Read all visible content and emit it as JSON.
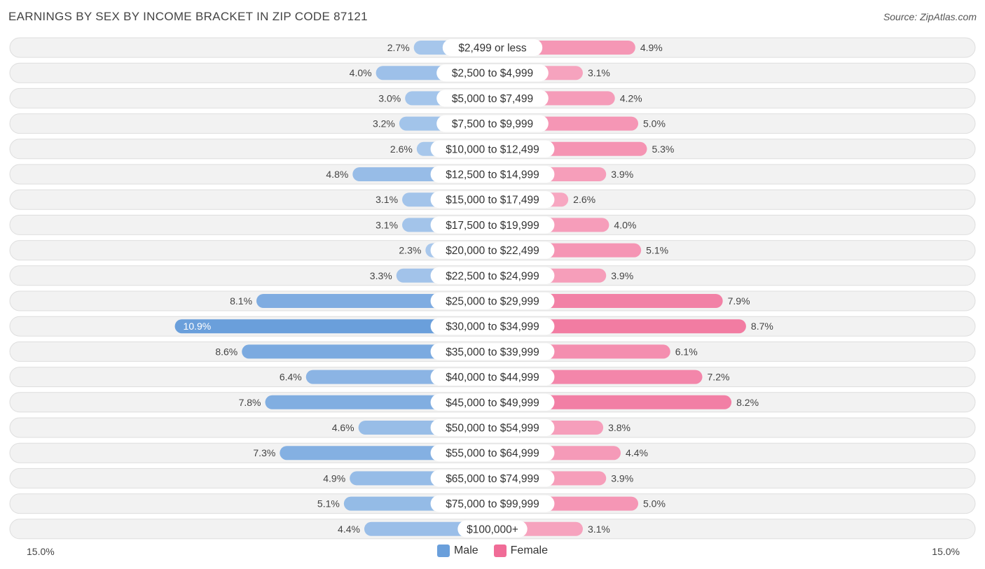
{
  "title": "EARNINGS BY SEX BY INCOME BRACKET IN ZIP CODE 87121",
  "source": "Source: ZipAtlas.com",
  "colors": {
    "male": "#6a9fdb",
    "male_light": "#a9c8ec",
    "female": "#f06c97",
    "female_light": "#f7a9c2"
  },
  "chart_data": {
    "type": "bar",
    "orientation": "horizontal-diverging",
    "title": "EARNINGS BY SEX BY INCOME BRACKET IN ZIP CODE 87121",
    "categories": [
      "$2,499 or less",
      "$2,500 to $4,999",
      "$5,000 to $7,499",
      "$7,500 to $9,999",
      "$10,000 to $12,499",
      "$12,500 to $14,999",
      "$15,000 to $17,499",
      "$17,500 to $19,999",
      "$20,000 to $22,499",
      "$22,500 to $24,999",
      "$25,000 to $29,999",
      "$30,000 to $34,999",
      "$35,000 to $39,999",
      "$40,000 to $44,999",
      "$45,000 to $49,999",
      "$50,000 to $54,999",
      "$55,000 to $64,999",
      "$65,000 to $74,999",
      "$75,000 to $99,999",
      "$100,000+"
    ],
    "series": [
      {
        "name": "Male",
        "values": [
          2.7,
          4.0,
          3.0,
          3.2,
          2.6,
          4.8,
          3.1,
          3.1,
          2.3,
          3.3,
          8.1,
          10.9,
          8.6,
          6.4,
          7.8,
          4.6,
          7.3,
          4.9,
          5.1,
          4.4
        ]
      },
      {
        "name": "Female",
        "values": [
          4.9,
          3.1,
          4.2,
          5.0,
          5.3,
          3.9,
          2.6,
          4.0,
          5.1,
          3.9,
          7.9,
          8.7,
          6.1,
          7.2,
          8.2,
          3.8,
          4.4,
          3.9,
          5.0,
          3.1
        ]
      }
    ],
    "value_labels": {
      "male": [
        "2.7%",
        "4.0%",
        "3.0%",
        "3.2%",
        "2.6%",
        "4.8%",
        "3.1%",
        "3.1%",
        "2.3%",
        "3.3%",
        "8.1%",
        "10.9%",
        "8.6%",
        "6.4%",
        "7.8%",
        "4.6%",
        "7.3%",
        "4.9%",
        "5.1%",
        "4.4%"
      ],
      "female": [
        "4.9%",
        "3.1%",
        "4.2%",
        "5.0%",
        "5.3%",
        "3.9%",
        "2.6%",
        "4.0%",
        "5.1%",
        "3.9%",
        "7.9%",
        "8.7%",
        "6.1%",
        "7.2%",
        "8.2%",
        "3.8%",
        "4.4%",
        "3.9%",
        "5.0%",
        "3.1%"
      ]
    },
    "xlim": [
      -15.0,
      15.0
    ],
    "axis_labels": {
      "left": "15.0%",
      "right": "15.0%"
    },
    "legend": [
      "Male",
      "Female"
    ],
    "legend_position": "bottom-center"
  }
}
